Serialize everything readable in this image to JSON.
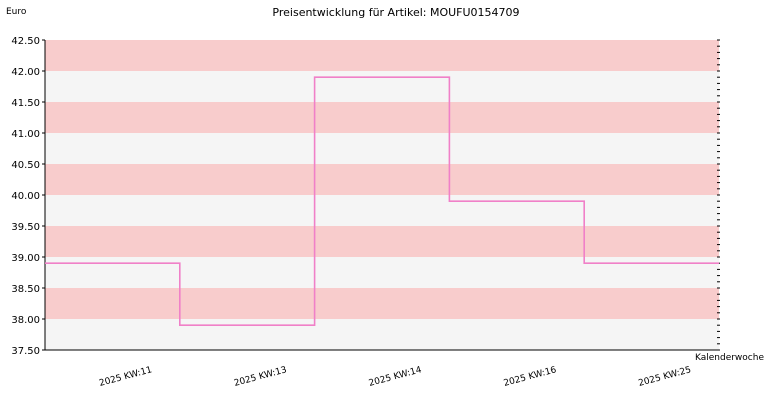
{
  "chart_data": {
    "type": "line",
    "step": true,
    "title": "Preisentwicklung für Artikel: MOUFU0154709",
    "ylabel": "Euro",
    "xlabel": "Kalenderwoche",
    "ylim": [
      37.5,
      42.5
    ],
    "yticks": [
      "37.50",
      "38.00",
      "38.50",
      "39.00",
      "39.50",
      "40.00",
      "40.50",
      "41.00",
      "41.50",
      "42.00",
      "42.50"
    ],
    "categories": [
      "2025 KW:11",
      "2025 KW:13",
      "2025 KW:14",
      "2025 KW:16",
      "2025 KW:25"
    ],
    "series": [
      {
        "values": [
          38.9,
          37.9,
          41.9,
          39.9,
          38.9
        ]
      }
    ],
    "grid": "horizontal alternating bands",
    "colors": {
      "band_light": "#f5f5f5",
      "band_dark": "#f8cccc",
      "line": "#f080c8",
      "axis": "#000000"
    }
  }
}
